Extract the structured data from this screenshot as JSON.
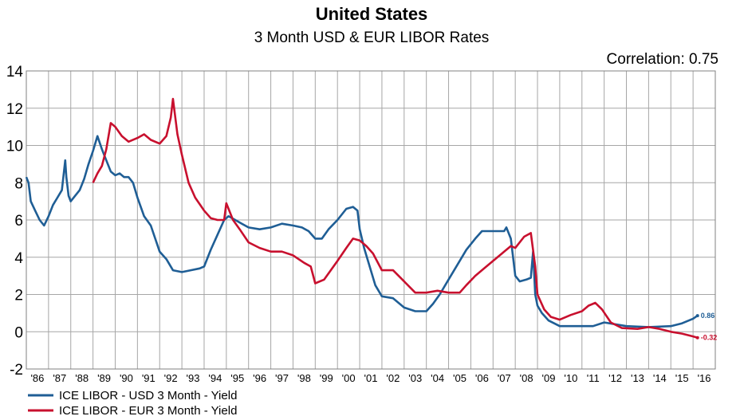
{
  "colors": {
    "usd": "#1f5e95",
    "eur": "#c8102e",
    "grid": "#a6a6a6"
  },
  "chart_data": {
    "type": "line",
    "title": "United States",
    "subtitle": "3 Month USD & EUR LIBOR Rates",
    "annotation": "Correlation: 0.75",
    "ylim": [
      -2,
      14
    ],
    "y_ticks": [
      -2,
      0,
      2,
      4,
      6,
      8,
      10,
      12,
      14
    ],
    "x_ticks": [
      "'86",
      "'87",
      "'88",
      "'89",
      "'90",
      "'91",
      "'92",
      "'93",
      "'94",
      "'95",
      "'96",
      "'97",
      "'98",
      "'99",
      "'00",
      "'01",
      "'02",
      "'03",
      "'04",
      "'05",
      "'06",
      "'07",
      "'08",
      "'09",
      "'10",
      "'11",
      "'12",
      "'13",
      "'14",
      "'15",
      "'16"
    ],
    "xlim": [
      1986.0,
      2017.0
    ],
    "grid": true,
    "legend_position": "bottom-left",
    "series": [
      {
        "name": "ICE LIBOR - USD 3 Month - Yield",
        "end_label": "0.86",
        "x": [
          1986.0,
          1986.1,
          1986.2,
          1986.4,
          1986.6,
          1986.8,
          1987.0,
          1987.2,
          1987.4,
          1987.6,
          1987.75,
          1987.8,
          1987.9,
          1988.0,
          1988.2,
          1988.4,
          1988.6,
          1988.8,
          1989.0,
          1989.2,
          1989.4,
          1989.6,
          1989.8,
          1990.0,
          1990.2,
          1990.4,
          1990.6,
          1990.8,
          1991.0,
          1991.3,
          1991.6,
          1992.0,
          1992.3,
          1992.6,
          1993.0,
          1993.4,
          1993.8,
          1994.0,
          1994.3,
          1994.6,
          1994.9,
          1995.1,
          1995.4,
          1995.7,
          1996.0,
          1996.5,
          1997.0,
          1997.5,
          1998.0,
          1998.4,
          1998.7,
          1999.0,
          1999.3,
          1999.6,
          2000.0,
          2000.4,
          2000.7,
          2000.9,
          2001.0,
          2001.2,
          2001.4,
          2001.7,
          2002.0,
          2002.5,
          2003.0,
          2003.5,
          2004.0,
          2004.3,
          2004.6,
          2005.0,
          2005.4,
          2005.8,
          2006.2,
          2006.5,
          2006.8,
          2007.2,
          2007.5,
          2007.6,
          2007.8,
          2008.0,
          2008.2,
          2008.5,
          2008.7,
          2008.8,
          2008.9,
          2009.0,
          2009.2,
          2009.5,
          2010.0,
          2010.5,
          2011.0,
          2011.5,
          2012.0,
          2012.5,
          2013.0,
          2014.0,
          2015.0,
          2015.5,
          2016.0,
          2016.2
        ],
        "values": [
          8.3,
          8.0,
          7.0,
          6.5,
          6.0,
          5.7,
          6.2,
          6.8,
          7.2,
          7.6,
          9.2,
          8.3,
          7.3,
          7.0,
          7.3,
          7.6,
          8.2,
          9.0,
          9.7,
          10.5,
          9.8,
          9.2,
          8.6,
          8.4,
          8.5,
          8.3,
          8.3,
          8.0,
          7.2,
          6.2,
          5.7,
          4.3,
          3.9,
          3.3,
          3.2,
          3.3,
          3.4,
          3.5,
          4.4,
          5.2,
          6.0,
          6.2,
          6.0,
          5.8,
          5.6,
          5.5,
          5.6,
          5.8,
          5.7,
          5.6,
          5.4,
          5.0,
          5.0,
          5.5,
          6.0,
          6.6,
          6.7,
          6.5,
          5.5,
          4.5,
          3.7,
          2.5,
          1.9,
          1.8,
          1.3,
          1.1,
          1.1,
          1.5,
          2.0,
          2.8,
          3.6,
          4.4,
          5.0,
          5.4,
          5.4,
          5.4,
          5.4,
          5.6,
          5.0,
          3.0,
          2.7,
          2.8,
          2.9,
          4.3,
          2.0,
          1.4,
          1.0,
          0.6,
          0.3,
          0.3,
          0.3,
          0.3,
          0.5,
          0.4,
          0.3,
          0.25,
          0.3,
          0.45,
          0.7,
          0.86
        ]
      },
      {
        "name": "ICE LIBOR - EUR 3 Month - Yield",
        "end_label": "-0.32",
        "x": [
          1989.0,
          1989.2,
          1989.4,
          1989.6,
          1989.8,
          1990.0,
          1990.3,
          1990.6,
          1991.0,
          1991.3,
          1991.6,
          1992.0,
          1992.3,
          1992.5,
          1992.6,
          1992.8,
          1993.0,
          1993.3,
          1993.6,
          1994.0,
          1994.3,
          1994.6,
          1994.9,
          1995.0,
          1995.3,
          1995.6,
          1996.0,
          1996.5,
          1997.0,
          1997.5,
          1998.0,
          1998.5,
          1998.8,
          1999.0,
          1999.4,
          1999.7,
          2000.0,
          2000.4,
          2000.7,
          2001.0,
          2001.3,
          2001.6,
          2002.0,
          2002.5,
          2003.0,
          2003.5,
          2004.0,
          2004.5,
          2005.0,
          2005.5,
          2005.8,
          2006.2,
          2006.6,
          2007.0,
          2007.4,
          2007.8,
          2008.0,
          2008.4,
          2008.7,
          2008.9,
          2009.0,
          2009.3,
          2009.6,
          2010.0,
          2010.5,
          2011.0,
          2011.3,
          2011.6,
          2011.9,
          2012.3,
          2012.8,
          2013.5,
          2014.0,
          2014.5,
          2015.0,
          2015.5,
          2016.0,
          2016.2
        ],
        "values": [
          8.0,
          8.5,
          8.9,
          9.8,
          11.2,
          11.0,
          10.5,
          10.2,
          10.4,
          10.6,
          10.3,
          10.1,
          10.5,
          11.5,
          12.5,
          10.6,
          9.5,
          8.0,
          7.2,
          6.5,
          6.1,
          6.0,
          6.0,
          6.9,
          6.0,
          5.5,
          4.8,
          4.5,
          4.3,
          4.3,
          4.1,
          3.7,
          3.5,
          2.6,
          2.8,
          3.3,
          3.8,
          4.5,
          5.0,
          4.9,
          4.6,
          4.2,
          3.3,
          3.3,
          2.7,
          2.1,
          2.1,
          2.2,
          2.1,
          2.1,
          2.5,
          3.0,
          3.4,
          3.8,
          4.2,
          4.6,
          4.5,
          5.1,
          5.3,
          3.5,
          2.0,
          1.2,
          0.8,
          0.65,
          0.9,
          1.1,
          1.4,
          1.55,
          1.2,
          0.5,
          0.2,
          0.15,
          0.25,
          0.15,
          0.0,
          -0.1,
          -0.25,
          -0.32
        ]
      }
    ]
  }
}
